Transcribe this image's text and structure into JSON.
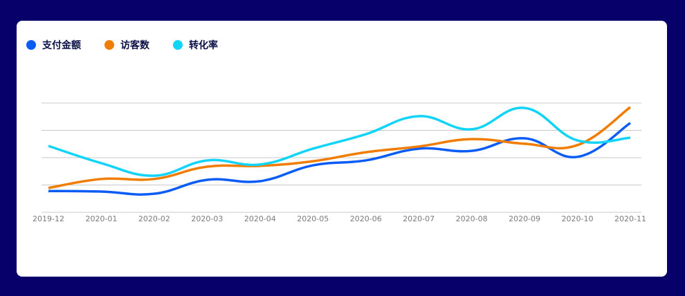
{
  "chart_data": {
    "type": "line",
    "title": "",
    "xlabel": "",
    "ylabel": "",
    "categories": [
      "2019-12",
      "2020-01",
      "2020-02",
      "2020-03",
      "2020-04",
      "2020-05",
      "2020-06",
      "2020-07",
      "2020-08",
      "2020-09",
      "2020-10",
      "2020-11"
    ],
    "ylim": [
      0,
      4
    ],
    "grid": true,
    "legend_position": "top-left",
    "series": [
      {
        "name": "支付金额",
        "color": "#0a5cf5",
        "values": [
          0.78,
          0.76,
          0.68,
          1.19,
          1.14,
          1.72,
          1.9,
          2.33,
          2.25,
          2.71,
          2.03,
          3.27
        ]
      },
      {
        "name": "访客数",
        "color": "#f07d00",
        "values": [
          0.89,
          1.22,
          1.22,
          1.67,
          1.7,
          1.87,
          2.2,
          2.41,
          2.68,
          2.51,
          2.46,
          3.85
        ]
      },
      {
        "name": "转化率",
        "color": "#12d3f8",
        "values": [
          2.43,
          1.8,
          1.34,
          1.9,
          1.75,
          2.33,
          2.86,
          3.52,
          3.04,
          3.82,
          2.63,
          2.73
        ]
      }
    ]
  }
}
